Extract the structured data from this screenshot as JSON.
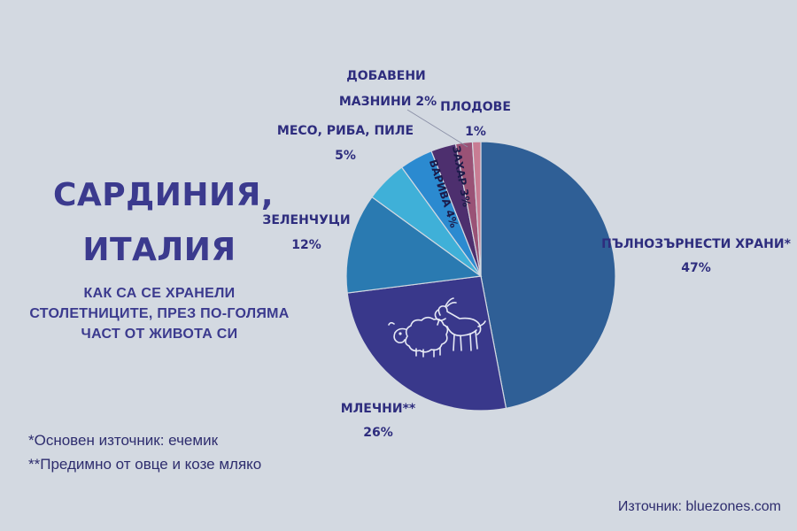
{
  "title_line1": "САРДИНИЯ,",
  "title_line2": "ИТАЛИЯ",
  "subtitle": "КАК СА СЕ ХРАНЕЛИ СТОЛЕТНИЦИТЕ, ПРЕЗ ПО-ГОЛЯМА ЧАСТ ОТ ЖИВОТА СИ",
  "notes": [
    "*Основен източник: ечемик",
    "**Предимно от овце и козе мляко"
  ],
  "source": "Източник: bluezones.com",
  "chart_data": {
    "type": "pie",
    "start": "12 o'clock",
    "direction": "clockwise",
    "slices": [
      {
        "label": "ПЪЛНОЗЪРНЕСТИ ХРАНИ*",
        "display": "47%",
        "value": 47,
        "color": "#2f5f96"
      },
      {
        "label": "МЛЕЧНИ**",
        "display": "26%",
        "value": 26,
        "color": "#39388b"
      },
      {
        "label": "ЗЕЛЕНЧУЦИ",
        "display": "12%",
        "value": 12,
        "color": "#2a7ab1"
      },
      {
        "label": "МЕСО, РИБА, ПИЛЕ",
        "display": "5%",
        "value": 5,
        "color": "#3fb0d8"
      },
      {
        "label": "ВАРИВА",
        "display": "4%",
        "value": 4,
        "color": "#2b8ad0"
      },
      {
        "label": "ЗАХАР",
        "display": "3%",
        "value": 3,
        "color": "#4d2f6e"
      },
      {
        "label": "ДОБАВЕНИ МАЗНИНИ",
        "display": "2%",
        "value": 2,
        "color": "#9a5276"
      },
      {
        "label": "ПЛОДОВЕ",
        "display": "1%",
        "value": 1,
        "color": "#c87c93"
      }
    ],
    "external_labels": {
      "whole": [
        "ПЪЛНОЗЪРНЕСТИ ХРАНИ*",
        "47%"
      ],
      "dairy": [
        "МЛЕЧНИ**",
        "26%"
      ],
      "veg": [
        "ЗЕЛЕНЧУЦИ",
        "12%"
      ],
      "meat": [
        "МЕСО, РИБА, ПИЛЕ",
        "5%"
      ],
      "fat": [
        "ДОБАВЕНИ",
        "МАЗНИНИ 2%"
      ],
      "fruit": [
        "ПЛОДОВЕ",
        "1%"
      ]
    },
    "internal_labels": {
      "legumes": "ВАРИВА 4%",
      "sugar": "ЗАХАР 3%"
    },
    "icons": [
      "sheep-icon",
      "goat-icon"
    ]
  }
}
